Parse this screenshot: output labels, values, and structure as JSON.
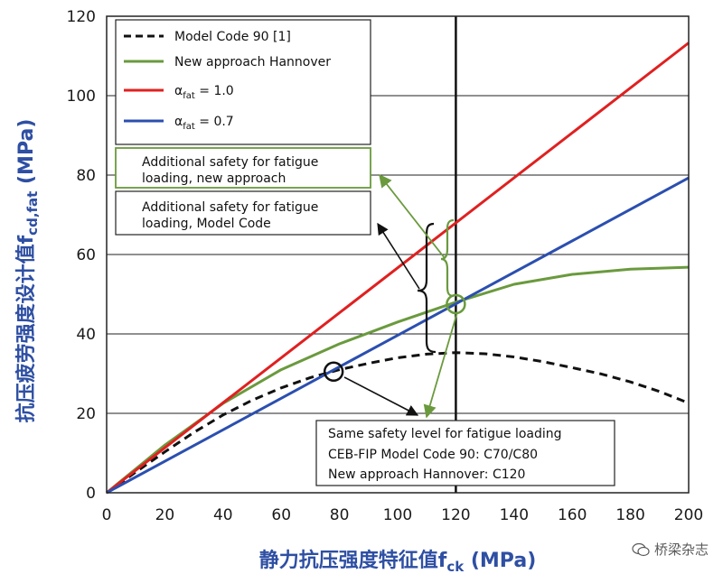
{
  "chart_data": {
    "type": "line",
    "xlim": [
      0,
      200
    ],
    "ylim": [
      0,
      120
    ],
    "xticks": [
      "0",
      "20",
      "40",
      "60",
      "80",
      "100",
      "120",
      "140",
      "160",
      "180",
      "200"
    ],
    "yticks": [
      "0",
      "20",
      "40",
      "60",
      "80",
      "100",
      "120"
    ],
    "xlabel_main": "静力抗压强度特征值f",
    "xlabel_sub": "ck",
    "xlabel_unit": " (MPa)",
    "ylabel_main": "抗压疲劳强度设计值f",
    "ylabel_sub": "cd,fat",
    "ylabel_unit": " (MPa)",
    "vertical_line_x": 120,
    "series": [
      {
        "name": "Model Code 90 [1]",
        "name_sym": "",
        "name_sub": "",
        "name_rest": "",
        "color": "#111111",
        "style": "dashed",
        "x": [
          0,
          10,
          20,
          30,
          40,
          50,
          60,
          70,
          80,
          90,
          100,
          110,
          120,
          130,
          140,
          150,
          160,
          170,
          180,
          190,
          200
        ],
        "y": [
          0,
          5.2,
          10.3,
          15.2,
          19.6,
          23.3,
          26.4,
          29.0,
          31.0,
          32.6,
          34.0,
          34.9,
          35.3,
          35.0,
          34.2,
          33.0,
          31.5,
          29.9,
          27.9,
          25.5,
          22.6
        ]
      },
      {
        "name": "New approach Hannover",
        "name_sym": "",
        "name_sub": "",
        "name_rest": "",
        "color": "#6a9a3d",
        "style": "solid",
        "x": [
          0,
          20,
          40,
          60,
          80,
          100,
          120,
          140,
          160,
          180,
          200
        ],
        "y": [
          0,
          12.0,
          22.5,
          31.0,
          37.5,
          43.0,
          48.0,
          52.5,
          55.0,
          56.3,
          56.8
        ]
      },
      {
        "name": "",
        "name_sym": "α",
        "name_sub": "fat",
        "name_rest": " = 1.0",
        "color": "#e02020",
        "style": "solid",
        "x": [
          0,
          200
        ],
        "y": [
          0,
          113.3
        ]
      },
      {
        "name": "",
        "name_sym": "α",
        "name_sub": "fat",
        "name_rest": " = 0.7",
        "color": "#2b4fb0",
        "style": "solid",
        "x": [
          0,
          200
        ],
        "y": [
          0,
          79.3
        ]
      }
    ],
    "annotations": {
      "new_approach_line1": "Additional safety for fatigue",
      "new_approach_line2": "loading, new approach",
      "model_code_line1": "Additional safety for fatigue",
      "model_code_line2": "loading, Model Code",
      "same_safety_line1": "Same safety level for fatigue loading",
      "same_safety_line2": "CEB-FIP Model Code 90: C70/C80",
      "same_safety_line3": "New approach Hannover: C120"
    },
    "marked_points": [
      {
        "x": 78,
        "y": 30.5,
        "color": "#111111"
      },
      {
        "x": 120,
        "y": 47.5,
        "color": "#6a9a3d"
      }
    ]
  },
  "watermark": "桥梁杂志"
}
